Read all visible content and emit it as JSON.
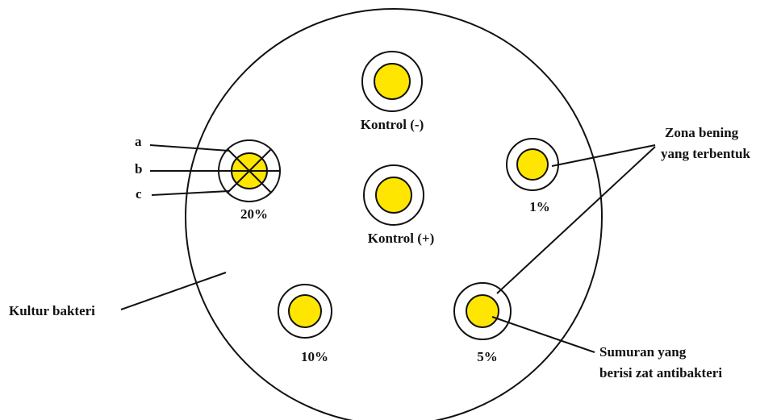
{
  "labels": {
    "kontrol_neg": "Kontrol (-)",
    "kontrol_pos": "Kontrol (+)",
    "pct_20": "20%",
    "pct_1": "1%",
    "pct_10": "10%",
    "pct_5": "5%",
    "letter_a": "a",
    "letter_b": "b",
    "letter_c": "c",
    "zona_line1": "Zona bening",
    "zona_line2": "yang terbentuk",
    "kultur": "Kultur bakteri",
    "sumuran_line1": "Sumuran yang",
    "sumuran_line2": "berisi zat antibakteri"
  },
  "colors": {
    "well_fill": "#FFE600",
    "line": "#111111",
    "background": "#FFFFFF"
  }
}
